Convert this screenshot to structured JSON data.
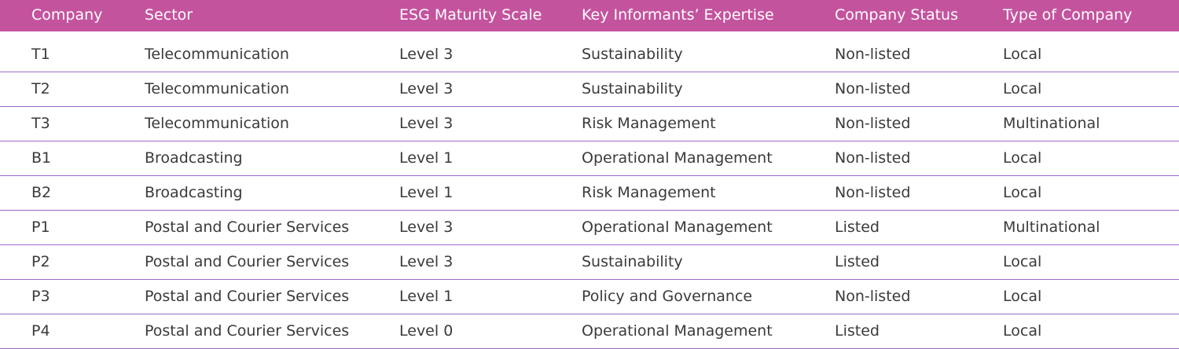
{
  "headers": [
    "Company",
    "Sector",
    "ESG Maturity Scale",
    "Key Informants’ Expertise",
    "Company Status",
    "Type of Company"
  ],
  "rows": [
    [
      "T1",
      "Telecommunication",
      "Level 3",
      "Sustainability",
      "Non-listed",
      "Local"
    ],
    [
      "T2",
      "Telecommunication",
      "Level 3",
      "Sustainability",
      "Non-listed",
      "Local"
    ],
    [
      "T3",
      "Telecommunication",
      "Level 3",
      "Risk Management",
      "Non-listed",
      "Multinational"
    ],
    [
      "B1",
      "Broadcasting",
      "Level 1",
      "Operational Management",
      "Non-listed",
      "Local"
    ],
    [
      "B2",
      "Broadcasting",
      "Level 1",
      "Risk Management",
      "Non-listed",
      "Local"
    ],
    [
      "P1",
      "Postal and Courier Services",
      "Level 3",
      "Operational Management",
      "Listed",
      "Multinational"
    ],
    [
      "P2",
      "Postal and Courier Services",
      "Level 3",
      "Sustainability",
      "Listed",
      "Local"
    ],
    [
      "P3",
      "Postal and Courier Services",
      "Level 1",
      "Policy and Governance",
      "Non-listed",
      "Local"
    ],
    [
      "P4",
      "Postal and Courier Services",
      "Level 0",
      "Operational Management",
      "Listed",
      "Local"
    ]
  ],
  "colors": {
    "header_background": "#c4539e",
    "row_divider": "#9a6ac8"
  }
}
